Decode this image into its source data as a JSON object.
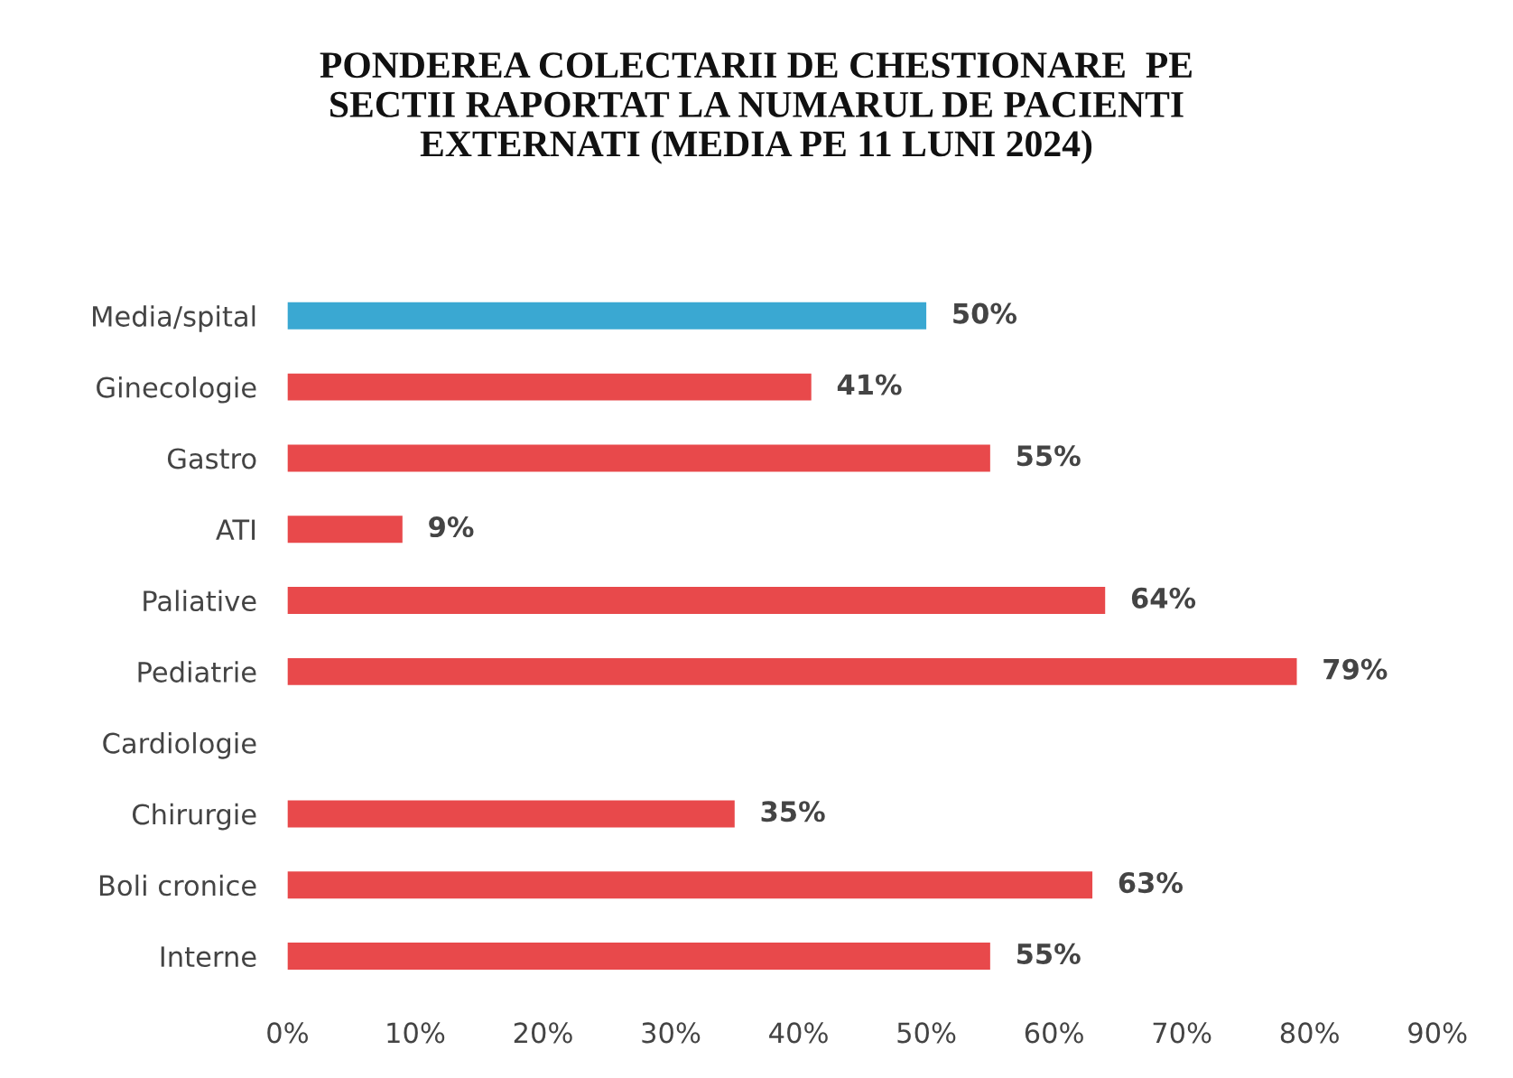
{
  "chart_data": {
    "type": "bar",
    "orientation": "horizontal",
    "title": "PONDEREA COLECTARII DE CHESTIONARE  PE\nSECTII RAPORTAT LA NUMARUL DE PACIENTI\nEXTERNATI (MEDIA PE 11 LUNI 2024)",
    "categories": [
      "Media/spital",
      "Ginecologie",
      "Gastro",
      "ATI",
      "Paliative",
      "Pediatrie",
      "Cardiologie",
      "Chirurgie",
      "Boli cronice",
      "Interne"
    ],
    "values": [
      50,
      41,
      55,
      9,
      64,
      79,
      null,
      35,
      63,
      55
    ],
    "value_labels": [
      "50%",
      "41%",
      "55%",
      "9%",
      "64%",
      "79%",
      null,
      "35%",
      "63%",
      "55%"
    ],
    "colors": [
      "#3aa8d2",
      "#e8494b",
      "#e8494b",
      "#e8494b",
      "#e8494b",
      "#e8494b",
      "#e8494b",
      "#e8494b",
      "#e8494b",
      "#e8494b"
    ],
    "xlim": [
      0,
      90
    ],
    "xticks": [
      {
        "value": 0,
        "label": "0%"
      },
      {
        "value": 10,
        "label": "10%"
      },
      {
        "value": 20,
        "label": "20%"
      },
      {
        "value": 30,
        "label": "30%"
      },
      {
        "value": 40,
        "label": "40%"
      },
      {
        "value": 50,
        "label": "50%"
      },
      {
        "value": 60,
        "label": "60%"
      },
      {
        "value": 70,
        "label": "70%"
      },
      {
        "value": 80,
        "label": "80%"
      },
      {
        "value": 90,
        "label": "90%"
      }
    ],
    "grid": false,
    "legend": false
  }
}
